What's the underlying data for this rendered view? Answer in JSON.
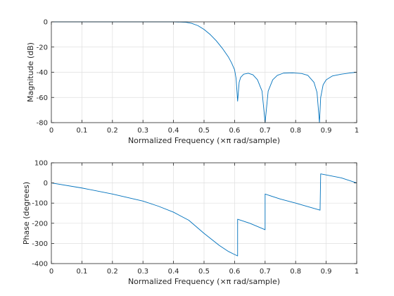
{
  "chart_data": [
    {
      "type": "line",
      "title": "",
      "xlabel": "Normalized Frequency  (×π rad/sample)",
      "ylabel": "Magnitude (dB)",
      "xlim": [
        0,
        1
      ],
      "ylim": [
        -80,
        0
      ],
      "xticks": [
        0,
        0.1,
        0.2,
        0.3,
        0.4,
        0.5,
        0.6,
        0.7,
        0.8,
        0.9,
        1
      ],
      "yticks": [
        -80,
        -60,
        -40,
        -20,
        0
      ],
      "xtick_labels": [
        "0",
        "0.1",
        "0.2",
        "0.3",
        "0.4",
        "0.5",
        "0.6",
        "0.7",
        "0.8",
        "0.9",
        "1"
      ],
      "ytick_labels": [
        "-80",
        "-60",
        "-40",
        "-20",
        "0"
      ],
      "grid": true,
      "color": "#0072bd",
      "series": [
        {
          "x": [
            0,
            0.1,
            0.2,
            0.3,
            0.4,
            0.44,
            0.46,
            0.48,
            0.5,
            0.52,
            0.54,
            0.56,
            0.58,
            0.59,
            0.6,
            0.605,
            0.61,
            0.615,
            0.62,
            0.63,
            0.645,
            0.66,
            0.675,
            0.69,
            0.7,
            0.71,
            0.725,
            0.74,
            0.76,
            0.79,
            0.82,
            0.84,
            0.86,
            0.87,
            0.878,
            0.882,
            0.89,
            0.9,
            0.92,
            0.95,
            0.98,
            1.0
          ],
          "y": [
            0,
            0,
            0,
            0,
            0,
            -0.3,
            -1.2,
            -3,
            -6,
            -10,
            -15,
            -21,
            -28,
            -32.5,
            -38,
            -45,
            -63,
            -48,
            -44,
            -41.5,
            -40.8,
            -42,
            -46,
            -55,
            -80,
            -55,
            -46,
            -42.5,
            -40.7,
            -40.5,
            -41,
            -42.5,
            -48,
            -56,
            -80,
            -60,
            -50,
            -46,
            -43,
            -41.5,
            -40.5,
            -40
          ]
        }
      ]
    },
    {
      "type": "line",
      "title": "",
      "xlabel": "Normalized Frequency  (×π rad/sample)",
      "ylabel": "Phase (degrees)",
      "xlim": [
        0,
        1
      ],
      "ylim": [
        -400,
        100
      ],
      "xticks": [
        0,
        0.1,
        0.2,
        0.3,
        0.4,
        0.5,
        0.6,
        0.7,
        0.8,
        0.9,
        1
      ],
      "yticks": [
        -400,
        -300,
        -200,
        -100,
        0,
        100
      ],
      "xtick_labels": [
        "0",
        "0.1",
        "0.2",
        "0.3",
        "0.4",
        "0.5",
        "0.6",
        "0.7",
        "0.8",
        "0.9",
        "1"
      ],
      "ytick_labels": [
        "-400",
        "-300",
        "-200",
        "-100",
        "0",
        "100"
      ],
      "grid": true,
      "color": "#0072bd",
      "series": [
        {
          "x": [
            0,
            0.1,
            0.2,
            0.3,
            0.35,
            0.4,
            0.45,
            0.5,
            0.55,
            0.58,
            0.6,
            0.61,
            0.61,
            0.65,
            0.7,
            0.7,
            0.75,
            0.8,
            0.88,
            0.882,
            0.95,
            1.0
          ],
          "y": [
            0,
            -25,
            -55,
            -90,
            -115,
            -145,
            -185,
            -250,
            -310,
            -340,
            -355,
            -362,
            -180,
            -200,
            -232,
            -55,
            -80,
            -100,
            -135,
            45,
            25,
            0
          ]
        }
      ]
    }
  ]
}
